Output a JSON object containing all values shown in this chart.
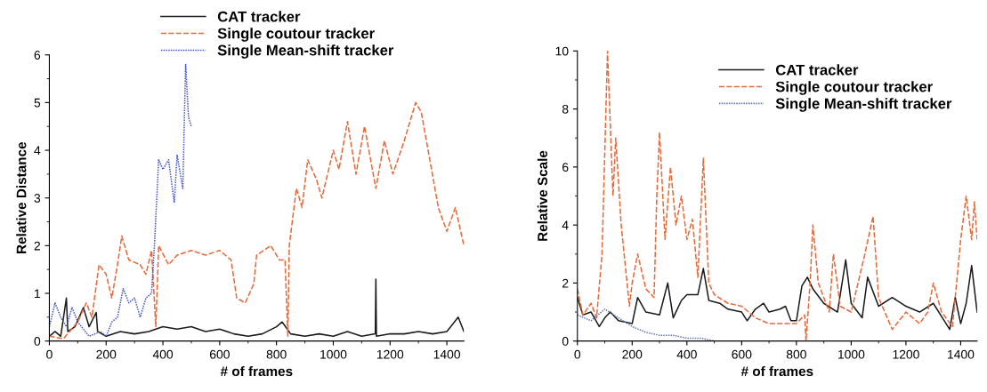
{
  "chart_data": [
    {
      "type": "line",
      "xlabel": "# of frames",
      "ylabel": "Relative Distance",
      "xlim": [
        0,
        1460
      ],
      "xticks": [
        0,
        200,
        400,
        600,
        800,
        1000,
        1200,
        1400
      ],
      "ylim": [
        0,
        6
      ],
      "yticks": [
        0,
        1,
        2,
        3,
        4,
        5,
        6
      ],
      "grid": false,
      "legend": "top",
      "series": [
        {
          "name": "CAT tracker",
          "color": "#1a1a1a",
          "line_style": "solid",
          "x": [
            0,
            20,
            40,
            60,
            65,
            90,
            120,
            140,
            165,
            170,
            200,
            250,
            300,
            350,
            400,
            450,
            500,
            550,
            600,
            650,
            700,
            750,
            800,
            820,
            850,
            900,
            950,
            1000,
            1050,
            1100,
            1148,
            1150,
            1152,
            1200,
            1250,
            1300,
            1350,
            1400,
            1440,
            1460
          ],
          "values": [
            0.1,
            0.2,
            0.1,
            0.9,
            0.2,
            0.3,
            0.7,
            0.3,
            0.6,
            0.2,
            0.1,
            0.2,
            0.15,
            0.2,
            0.3,
            0.25,
            0.3,
            0.2,
            0.25,
            0.15,
            0.1,
            0.15,
            0.3,
            0.4,
            0.15,
            0.1,
            0.15,
            0.1,
            0.2,
            0.1,
            0.15,
            1.3,
            0.1,
            0.15,
            0.15,
            0.2,
            0.15,
            0.2,
            0.5,
            0.2
          ]
        },
        {
          "name": "Single coutour tracker",
          "color": "#e8693a",
          "line_style": "dashed",
          "x": [
            0,
            50,
            100,
            130,
            150,
            175,
            200,
            220,
            240,
            255,
            280,
            320,
            340,
            360,
            375,
            385,
            420,
            450,
            500,
            550,
            600,
            640,
            660,
            690,
            720,
            730,
            780,
            810,
            830,
            840,
            845,
            870,
            890,
            910,
            940,
            960,
            1000,
            1020,
            1050,
            1080,
            1110,
            1150,
            1180,
            1210,
            1250,
            1290,
            1310,
            1340,
            1370,
            1400,
            1430,
            1460
          ],
          "values": [
            0.1,
            0.05,
            0.4,
            0.8,
            0.5,
            1.6,
            1.4,
            0.9,
            1.6,
            2.2,
            1.7,
            1.6,
            1.4,
            1.9,
            0.3,
            2.0,
            1.6,
            1.8,
            1.9,
            1.8,
            1.9,
            1.7,
            0.9,
            0.8,
            1.2,
            1.8,
            2.0,
            1.7,
            1.7,
            0.1,
            2.0,
            3.2,
            2.8,
            3.8,
            3.4,
            3.0,
            4.0,
            3.6,
            4.6,
            3.5,
            4.5,
            3.2,
            4.2,
            3.5,
            4.2,
            5.0,
            4.8,
            3.8,
            2.8,
            2.3,
            2.8,
            2.0
          ]
        },
        {
          "name": "Single Mean-shift tracker",
          "color": "#4455cc",
          "line_style": "dotted",
          "x": [
            0,
            20,
            40,
            60,
            80,
            100,
            140,
            180,
            200,
            220,
            240,
            260,
            280,
            300,
            320,
            340,
            360,
            370,
            385,
            400,
            420,
            440,
            450,
            470,
            480,
            490,
            500
          ],
          "values": [
            0.3,
            0.8,
            0.5,
            0.3,
            0.7,
            0.4,
            0.1,
            0.2,
            0.1,
            0.4,
            0.5,
            1.1,
            0.8,
            0.9,
            0.5,
            0.9,
            1.0,
            2.0,
            3.8,
            3.6,
            3.8,
            2.9,
            3.9,
            3.2,
            5.8,
            4.7,
            4.5
          ]
        }
      ]
    },
    {
      "type": "line",
      "xlabel": "# of frames",
      "ylabel": "Relative Scale",
      "xlim": [
        0,
        1460
      ],
      "xticks": [
        0,
        200,
        400,
        600,
        800,
        1000,
        1200,
        1400
      ],
      "ylim": [
        0,
        10
      ],
      "yticks": [
        0,
        2,
        4,
        6,
        8,
        10
      ],
      "grid": false,
      "legend": "top right",
      "series": [
        {
          "name": "CAT tracker",
          "color": "#1a1a1a",
          "line_style": "solid",
          "x": [
            0,
            20,
            50,
            80,
            100,
            120,
            150,
            200,
            220,
            250,
            300,
            330,
            350,
            380,
            400,
            440,
            460,
            480,
            520,
            550,
            600,
            620,
            650,
            680,
            700,
            740,
            760,
            780,
            800,
            820,
            840,
            860,
            900,
            950,
            980,
            1000,
            1040,
            1060,
            1100,
            1150,
            1200,
            1250,
            1300,
            1340,
            1360,
            1380,
            1400,
            1420,
            1440,
            1460
          ],
          "values": [
            1.5,
            0.9,
            1.0,
            0.5,
            0.8,
            1.0,
            0.7,
            0.6,
            1.5,
            1.0,
            0.9,
            2.0,
            0.8,
            1.4,
            1.6,
            1.6,
            2.5,
            1.4,
            1.3,
            1.1,
            1.0,
            0.7,
            1.1,
            1.3,
            1.0,
            1.1,
            1.2,
            0.7,
            0.7,
            1.9,
            2.2,
            1.8,
            1.3,
            1.0,
            2.8,
            1.3,
            0.8,
            2.2,
            1.2,
            1.5,
            1.2,
            1.0,
            1.3,
            0.7,
            0.4,
            1.5,
            0.6,
            1.3,
            2.6,
            1.0
          ]
        },
        {
          "name": "Single coutour tracker",
          "color": "#e8693a",
          "line_style": "dashed",
          "x": [
            0,
            20,
            50,
            70,
            90,
            110,
            130,
            140,
            160,
            190,
            200,
            220,
            250,
            280,
            290,
            300,
            320,
            340,
            360,
            380,
            400,
            420,
            440,
            460,
            480,
            500,
            550,
            600,
            650,
            700,
            750,
            800,
            830,
            835,
            850,
            860,
            880,
            920,
            935,
            960,
            1000,
            1050,
            1080,
            1100,
            1150,
            1200,
            1250,
            1280,
            1300,
            1330,
            1370,
            1400,
            1420,
            1440,
            1450,
            1460
          ],
          "values": [
            1.8,
            0.9,
            1.3,
            0.8,
            3.0,
            10.0,
            5.0,
            7.0,
            4.0,
            1.2,
            2.0,
            3.0,
            1.8,
            1.5,
            5.0,
            7.2,
            3.5,
            6.0,
            4.0,
            5.0,
            3.5,
            4.2,
            2.2,
            6.3,
            2.0,
            1.6,
            1.3,
            1.2,
            0.8,
            0.6,
            0.6,
            0.6,
            0.9,
            0.0,
            2.0,
            4.0,
            2.0,
            1.0,
            3.0,
            1.2,
            1.0,
            3.0,
            4.3,
            1.5,
            0.4,
            1.0,
            0.6,
            1.0,
            2.0,
            1.0,
            0.5,
            3.5,
            5.0,
            3.5,
            4.8,
            3.5
          ]
        },
        {
          "name": "Single Mean-shift tracker",
          "color": "#6677bb",
          "line_style": "dotted",
          "x": [
            0,
            50,
            100,
            150,
            200,
            250,
            300,
            350,
            400,
            450,
            500
          ],
          "values": [
            0.9,
            0.7,
            1.1,
            0.8,
            0.5,
            0.3,
            0.2,
            0.2,
            0.1,
            0.1,
            0.0
          ]
        }
      ]
    }
  ]
}
